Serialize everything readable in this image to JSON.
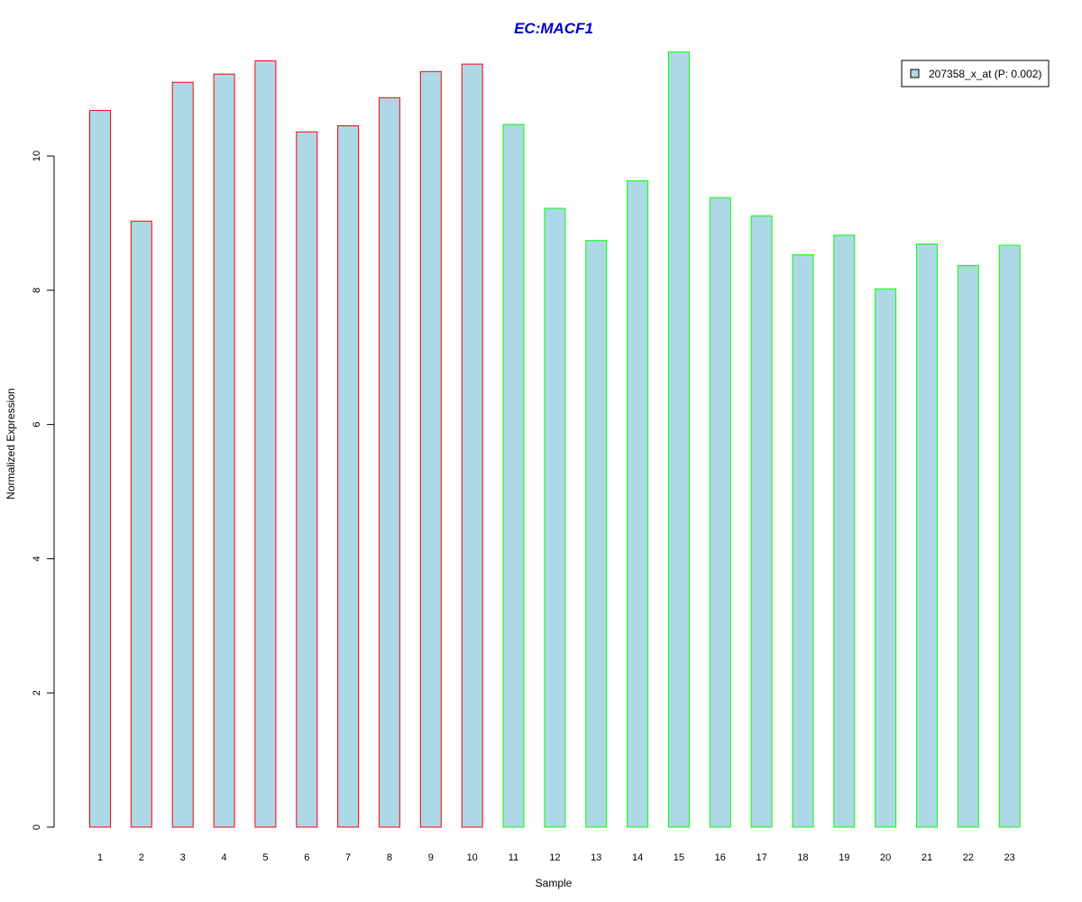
{
  "chart_data": {
    "type": "bar",
    "title": "EC:MACF1",
    "xlabel": "Sample",
    "ylabel": "Normalized Expression",
    "ylim": [
      0,
      11.7
    ],
    "yticks": [
      0,
      2,
      4,
      6,
      8,
      10
    ],
    "categories": [
      "1",
      "2",
      "3",
      "4",
      "5",
      "6",
      "7",
      "8",
      "9",
      "10",
      "11",
      "12",
      "13",
      "14",
      "15",
      "16",
      "17",
      "18",
      "19",
      "20",
      "21",
      "22",
      "23"
    ],
    "series": [
      {
        "name": "207358_x_at (P: 0.002)",
        "values": [
          10.68,
          9.03,
          11.1,
          11.22,
          11.42,
          10.36,
          10.45,
          10.87,
          11.26,
          11.37,
          10.47,
          9.22,
          8.74,
          9.63,
          11.55,
          9.38,
          9.11,
          8.53,
          8.82,
          8.02,
          8.69,
          8.37,
          8.67
        ],
        "fill_color": "#add8e6"
      }
    ],
    "bar_border_colors": [
      "#ff0000",
      "#ff0000",
      "#ff0000",
      "#ff0000",
      "#ff0000",
      "#ff0000",
      "#ff0000",
      "#ff0000",
      "#ff0000",
      "#ff0000",
      "#00ff00",
      "#00ff00",
      "#00ff00",
      "#00ff00",
      "#00ff00",
      "#00ff00",
      "#00ff00",
      "#00ff00",
      "#00ff00",
      "#00ff00",
      "#00ff00",
      "#00ff00",
      "#00ff00"
    ],
    "title_color": "#0000cc",
    "legend_placement": "top-right",
    "grid": false
  }
}
